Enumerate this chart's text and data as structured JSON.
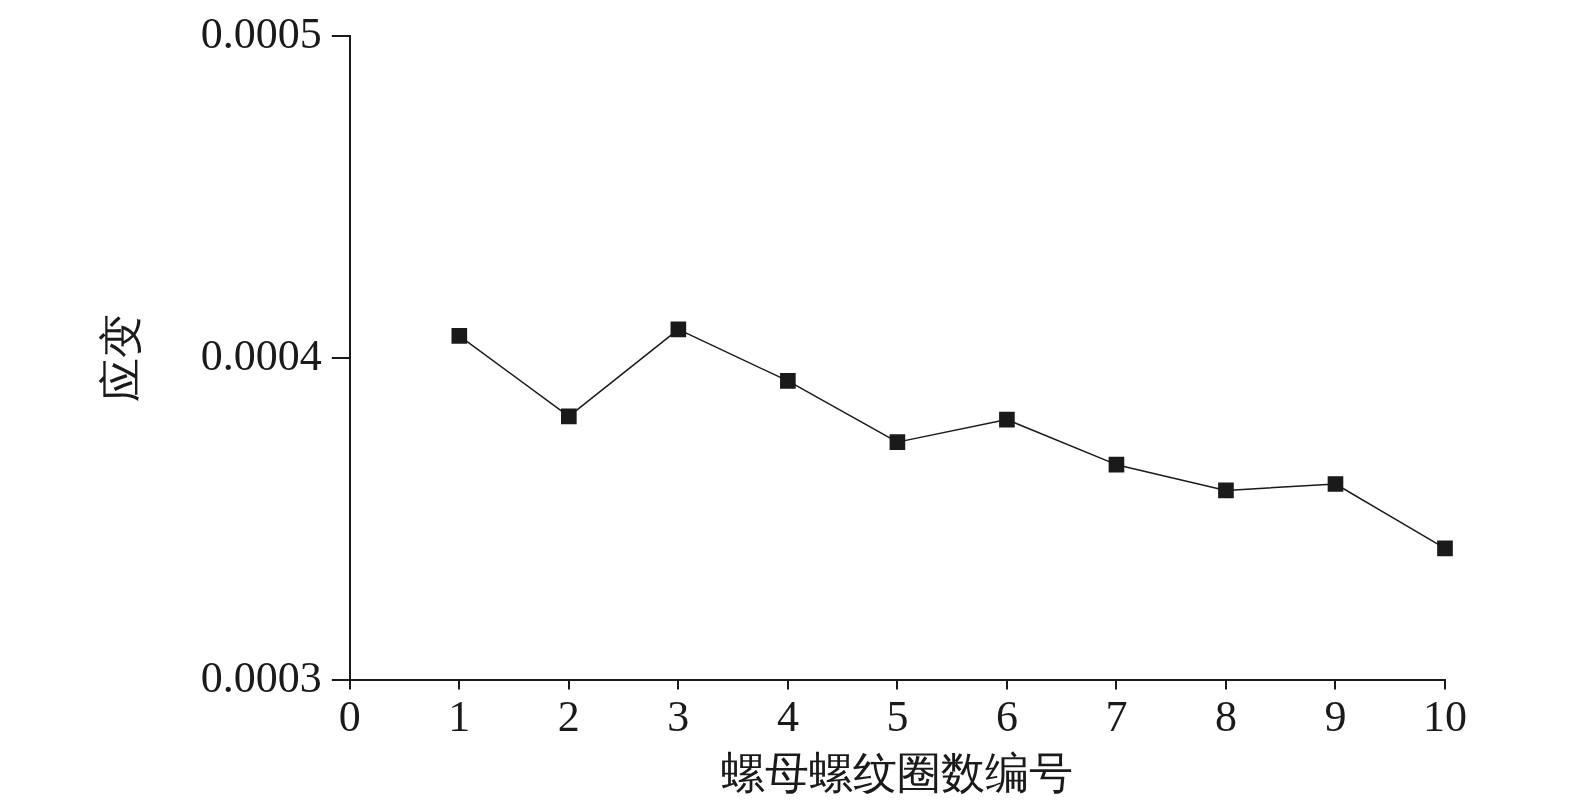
{
  "chart_data": {
    "type": "line",
    "xlabel": "螺母螺纹圈数编号",
    "ylabel": "应变",
    "x": [
      1,
      2,
      3,
      4,
      5,
      6,
      7,
      8,
      9,
      10
    ],
    "series": [
      {
        "color": "#1a1a1a",
        "values": [
          0.000407,
          0.000382,
          0.000409,
          0.000393,
          0.000374,
          0.000381,
          0.000367,
          0.000359,
          0.000361,
          0.000341
        ]
      }
    ],
    "xlim": [
      0,
      10
    ],
    "xticks": [
      0,
      1,
      2,
      3,
      4,
      5,
      6,
      7,
      8,
      9,
      10
    ],
    "ylim": [
      0.0003,
      0.0005
    ],
    "yticks": [
      0.0003,
      0.0004,
      0.0005
    ],
    "grid": false,
    "legend": false,
    "marker": "square",
    "line_style": "solid"
  }
}
